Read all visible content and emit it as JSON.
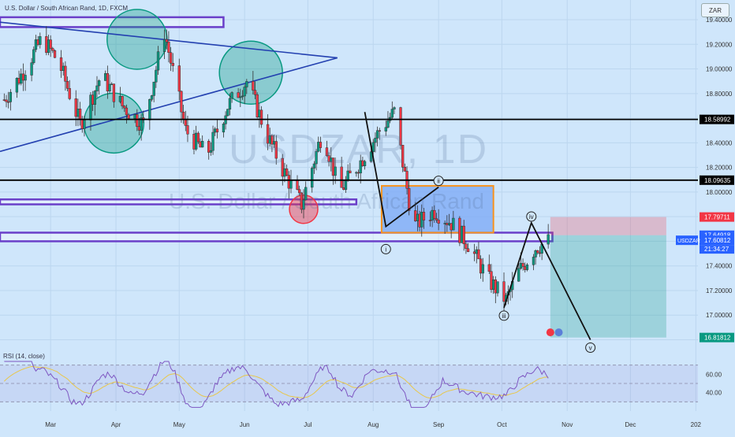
{
  "header": {
    "title": "U.S. Dollar / South African Rand, 1D, FXCM",
    "currency": "ZAR"
  },
  "watermark": {
    "symbol": "USDZAR, 1D",
    "name": "U.S. Dollar / South African Rand"
  },
  "chart_data": {
    "type": "candlestick",
    "symbol": "USDZAR",
    "timeframe": "1D",
    "ylim": [
      16.72,
      19.56
    ],
    "y_ticks": [
      "19.40000",
      "19.20000",
      "19.00000",
      "18.80000",
      "18.60000",
      "18.40000",
      "18.20000",
      "18.00000",
      "17.80000",
      "17.60000",
      "17.40000",
      "17.20000",
      "17.00000",
      "16.80000"
    ],
    "y_tick_values": [
      19.4,
      19.2,
      19.0,
      18.8,
      18.6,
      18.4,
      18.2,
      18.0,
      17.8,
      17.6,
      17.4,
      17.2,
      17.0,
      16.8
    ],
    "x_ticks": [
      "Mar",
      "Apr",
      "May",
      "Jun",
      "Jul",
      "Aug",
      "Sep",
      "Oct",
      "Nov",
      "Dec",
      "202"
    ],
    "x_tick_dates": [
      "2023-03-01",
      "2023-04-01",
      "2023-05-01",
      "2023-06-01",
      "2023-07-01",
      "2023-08-01",
      "2023-09-01",
      "2023-10-01",
      "2023-11-01",
      "2023-12-01",
      "2024-01-01"
    ],
    "x_range": [
      "2023-02-05",
      "2024-01-02"
    ],
    "price_path": [
      [
        "2023-02-07",
        18.75
      ],
      [
        "2023-02-15",
        18.95
      ],
      [
        "2023-02-25",
        19.25
      ],
      [
        "2023-03-05",
        19.05
      ],
      [
        "2023-03-15",
        18.55
      ],
      [
        "2023-03-25",
        18.95
      ],
      [
        "2023-04-04",
        18.7
      ],
      [
        "2023-04-14",
        18.55
      ],
      [
        "2023-04-24",
        19.3
      ],
      [
        "2023-05-04",
        18.5
      ],
      [
        "2023-05-14",
        18.3
      ],
      [
        "2023-05-24",
        18.7
      ],
      [
        "2023-06-02",
        18.9
      ],
      [
        "2023-06-12",
        18.45
      ],
      [
        "2023-06-20",
        18.15
      ],
      [
        "2023-06-28",
        17.9
      ],
      [
        "2023-07-08",
        18.5
      ],
      [
        "2023-07-16",
        18.0
      ],
      [
        "2023-07-26",
        18.25
      ],
      [
        "2023-08-04",
        18.5
      ],
      [
        "2023-08-11",
        18.65
      ],
      [
        "2023-08-20",
        17.72
      ],
      [
        "2023-08-30",
        17.85
      ],
      [
        "2023-09-07",
        17.75
      ],
      [
        "2023-09-15",
        17.58
      ],
      [
        "2023-09-25",
        17.28
      ],
      [
        "2023-10-03",
        17.12
      ],
      [
        "2023-10-09",
        17.35
      ],
      [
        "2023-10-17",
        17.55
      ],
      [
        "2023-10-23",
        17.6
      ]
    ],
    "horizontal_levels": [
      {
        "label": "18.58992",
        "value": 18.58992
      },
      {
        "label": "18.09635",
        "value": 18.09635
      }
    ],
    "price_labels": [
      {
        "label": "17.79711",
        "value": 17.79711,
        "color": "#f23645"
      },
      {
        "label": "17.64918",
        "value": 17.64918,
        "color": "#2962ff"
      },
      {
        "label": "17.60812",
        "value": 17.60812,
        "color": "#2962ff"
      },
      {
        "label": "16.81812",
        "value": 16.81812,
        "color": "#089981"
      }
    ],
    "last_price": {
      "symbol": "USDZAR",
      "value": "17.60812",
      "countdown": "21:34:27"
    },
    "position": {
      "entry": 17.64918,
      "stop": 17.79711,
      "target": 16.81812,
      "start": "2023-10-24",
      "end": "2023-12-18"
    },
    "elliott_wave": [
      {
        "label": "i",
        "date": "2023-08-07",
        "value": 17.6
      },
      {
        "label": "ii",
        "date": "2023-09-01",
        "value": 18.04
      },
      {
        "label": "iii",
        "date": "2023-10-02",
        "value": 17.06
      },
      {
        "label": "iv",
        "date": "2023-10-15",
        "value": 17.75
      },
      {
        "label": "v",
        "date": "2023-11-12",
        "value": 16.8
      }
    ],
    "rsi": {
      "label": "RSI (14, close)",
      "y_ticks": [
        "60.00",
        "40.00"
      ],
      "y_tick_values": [
        60,
        40
      ],
      "range": [
        20,
        80
      ],
      "band": [
        30,
        70
      ],
      "last": 53
    }
  },
  "colors": {
    "background": "#cfe6fb",
    "up": "#089981",
    "down": "#f23645",
    "level": "#000000",
    "zone": "#6a3fc9",
    "triangle": "#2340b0",
    "box_fill": "#7aa7f5",
    "box_border": "#f7931e",
    "rsi_line": "#7e57c2",
    "rsi_ma": "#e8c74a"
  }
}
